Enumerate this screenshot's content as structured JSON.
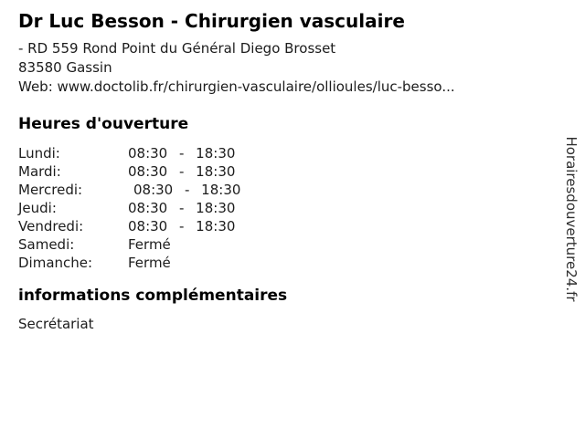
{
  "header": {
    "title": "Dr Luc Besson - Chirurgien vasculaire",
    "address_line1": "- RD 559 Rond Point du Général Diego Brosset",
    "address_line2": "83580 Gassin",
    "web_line": "Web: www.doctolib.fr/chirurgien-vasculaire/ollioules/luc-besso..."
  },
  "hours": {
    "heading": "Heures d'ouverture",
    "rows": [
      {
        "day": "Lundi:",
        "value": "08:30 - 18:30"
      },
      {
        "day": "Mardi:",
        "value": "08:30 - 18:30"
      },
      {
        "day": "Mercredi:",
        "value": "08:30 - 18:30"
      },
      {
        "day": "Jeudi:",
        "value": "08:30 - 18:30"
      },
      {
        "day": "Vendredi:",
        "value": "08:30 - 18:30"
      },
      {
        "day": "Samedi:",
        "value": "Fermé"
      },
      {
        "day": "Dimanche:",
        "value": "Fermé"
      }
    ]
  },
  "additional_info": {
    "heading": "informations complémentaires",
    "text": "Secrétariat"
  },
  "watermark": {
    "text": "Horairesdouverture24.fr"
  },
  "colors": {
    "background": "#ffffff",
    "text": "#1c1c1c",
    "heading": "#000000",
    "watermark": "#2e2e2e"
  }
}
